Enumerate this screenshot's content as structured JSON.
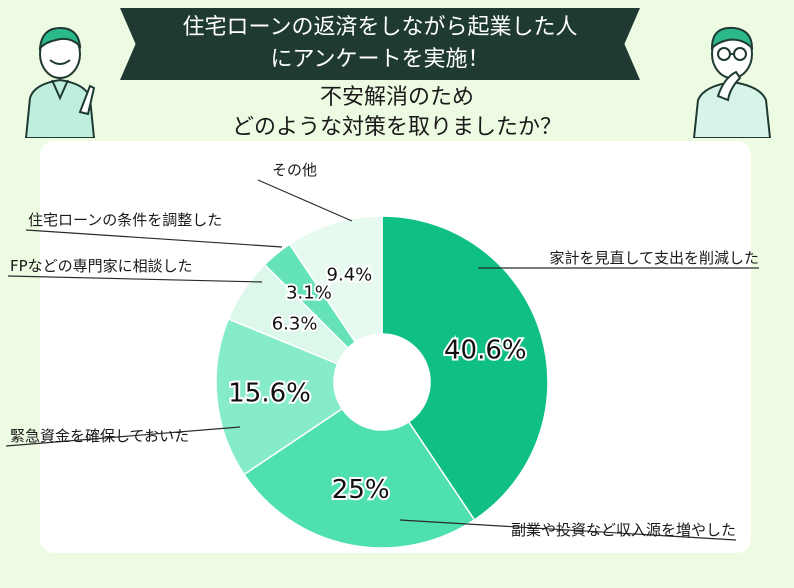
{
  "header": {
    "line1": "住宅ローンの返済をしながら起業した人",
    "line2": "にアンケートを実施！"
  },
  "question": {
    "line1": "不安解消のため",
    "line2": "どのような対策を取りましたか？"
  },
  "colors": {
    "banner": "#1f3a33",
    "background": "#eefbe3",
    "card": "#ffffff",
    "leader_line": "#2a2a2a"
  },
  "chart_data": {
    "type": "pie",
    "donut": true,
    "start_angle_deg": 0,
    "direction": "clockwise",
    "slices": [
      {
        "label": "家計を見直して支出を削減した",
        "value": 40.6,
        "display": "40.6%",
        "color": "#10bf84"
      },
      {
        "label": "副業や投資など収入源を増やした",
        "value": 25,
        "display": "25%",
        "color": "#4fe0b0"
      },
      {
        "label": "緊急資金を確保しておいた",
        "value": 15.6,
        "display": "15.6%",
        "color": "#86ebc8"
      },
      {
        "label": "FPなどの専門家に相談した",
        "value": 6.3,
        "display": "6.3%",
        "color": "#dbf8eb"
      },
      {
        "label": "住宅ローンの条件を調整した",
        "value": 3.1,
        "display": "3.1%",
        "color": "#63e3b6"
      },
      {
        "label": "その他",
        "value": 9.4,
        "display": "9.4%",
        "color": "#e6faf0"
      }
    ]
  }
}
